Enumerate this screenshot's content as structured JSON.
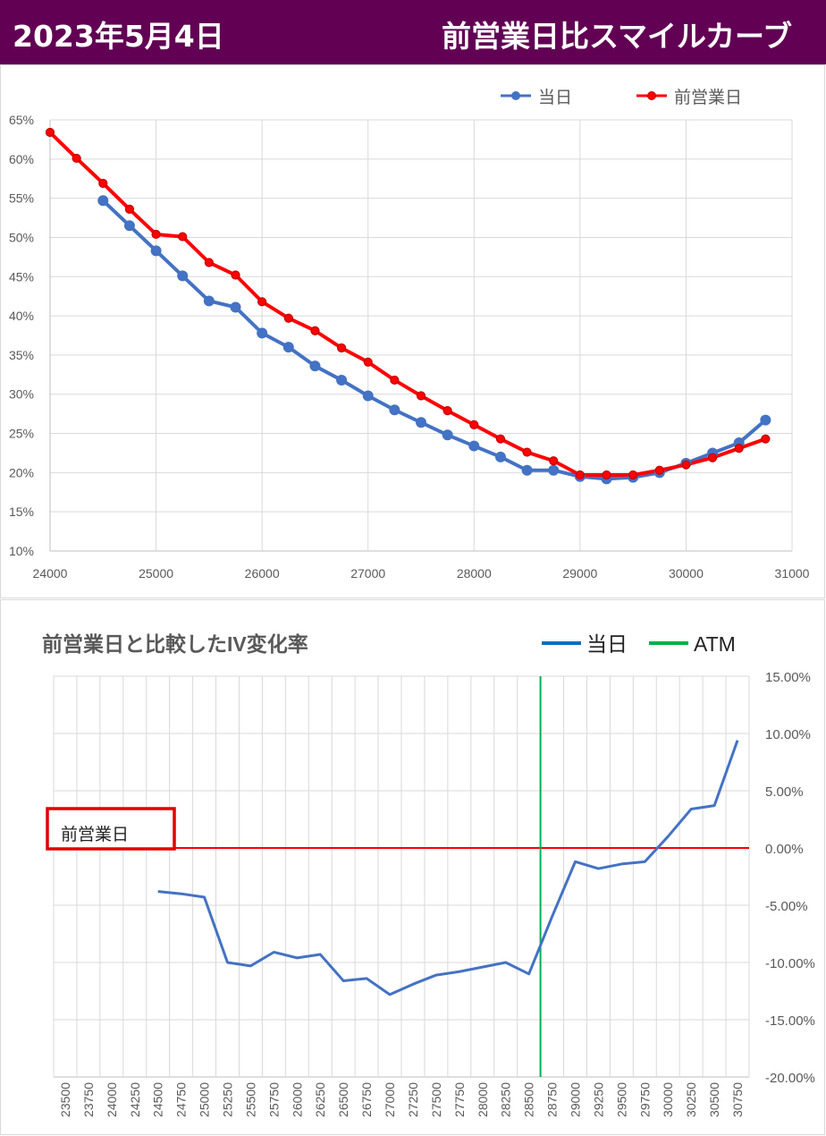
{
  "header": {
    "date": "2023年5月4日",
    "title": "前営業日比スマイルカーブ"
  },
  "colors": {
    "banner": "#620054",
    "today": "#4472C4",
    "previous": "#FF0000",
    "atm": "#00B050",
    "grid": "#D9D9D9",
    "axis_text": "#595959"
  },
  "chart_data": [
    {
      "type": "line",
      "title": "",
      "xlabel": "",
      "ylabel": "",
      "xlim": [
        24000,
        31000
      ],
      "ylim": [
        0.1,
        0.65
      ],
      "x_ticks": [
        "24000",
        "25000",
        "26000",
        "27000",
        "28000",
        "29000",
        "30000",
        "31000"
      ],
      "y_ticks": [
        "65%",
        "60%",
        "55%",
        "50%",
        "45%",
        "40%",
        "35%",
        "30%",
        "25%",
        "20%",
        "15%",
        "10%"
      ],
      "grid": true,
      "legend_position": "top-right",
      "series": [
        {
          "name": "当日",
          "x": [
            24500,
            24750,
            25000,
            25250,
            25500,
            25750,
            26000,
            26250,
            26500,
            26750,
            27000,
            27250,
            27500,
            27750,
            28000,
            28250,
            28500,
            28750,
            29000,
            29250,
            29500,
            29750,
            30000,
            30250,
            30500,
            30750
          ],
          "values": [
            0.547,
            0.515,
            0.483,
            0.451,
            0.419,
            0.411,
            0.378,
            0.36,
            0.336,
            0.318,
            0.298,
            0.28,
            0.264,
            0.248,
            0.234,
            0.22,
            0.203,
            0.203,
            0.195,
            0.192,
            0.194,
            0.2,
            0.212,
            0.225,
            0.238,
            0.267
          ]
        },
        {
          "name": "前営業日",
          "x": [
            24000,
            24250,
            24500,
            24750,
            25000,
            25250,
            25500,
            25750,
            26000,
            26250,
            26500,
            26750,
            27000,
            27250,
            27500,
            27750,
            28000,
            28250,
            28500,
            28750,
            29000,
            29250,
            29500,
            29750,
            30000,
            30250,
            30500,
            30750
          ],
          "values": [
            0.634,
            0.601,
            0.569,
            0.536,
            0.504,
            0.501,
            0.468,
            0.452,
            0.418,
            0.397,
            0.381,
            0.359,
            0.341,
            0.318,
            0.298,
            0.279,
            0.261,
            0.243,
            0.226,
            0.215,
            0.197,
            0.197,
            0.197,
            0.203,
            0.21,
            0.219,
            0.231,
            0.243
          ]
        }
      ]
    },
    {
      "type": "line",
      "title": "前営業日と比較したIV変化率",
      "xlabel": "",
      "ylabel": "",
      "ylim": [
        -0.2,
        0.15
      ],
      "y_ticks": [
        "15.00%",
        "10.00%",
        "5.00%",
        "0.00%",
        "-5.00%",
        "-10.00%",
        "-15.00%",
        "-20.00%"
      ],
      "categories": [
        "23500",
        "23750",
        "24000",
        "24250",
        "24500",
        "24750",
        "25000",
        "25250",
        "25500",
        "25750",
        "26000",
        "26250",
        "26500",
        "26750",
        "27000",
        "27250",
        "27500",
        "27750",
        "28000",
        "28250",
        "28500",
        "28750",
        "29000",
        "29250",
        "29500",
        "29750",
        "30000",
        "30250",
        "30500",
        "30750"
      ],
      "grid": true,
      "legend_position": "top-right",
      "series": [
        {
          "name": "当日",
          "values": [
            null,
            null,
            null,
            null,
            -0.038,
            -0.04,
            -0.043,
            -0.1,
            -0.103,
            -0.091,
            -0.096,
            -0.093,
            -0.116,
            -0.114,
            -0.128,
            -0.119,
            -0.111,
            -0.108,
            -0.104,
            -0.1,
            -0.11,
            -0.06,
            -0.012,
            -0.018,
            -0.014,
            -0.012,
            0.01,
            0.034,
            0.037,
            0.094
          ]
        }
      ],
      "atm_line": {
        "name": "ATM",
        "x": "28750"
      },
      "zero_line_label": "前営業日"
    }
  ]
}
